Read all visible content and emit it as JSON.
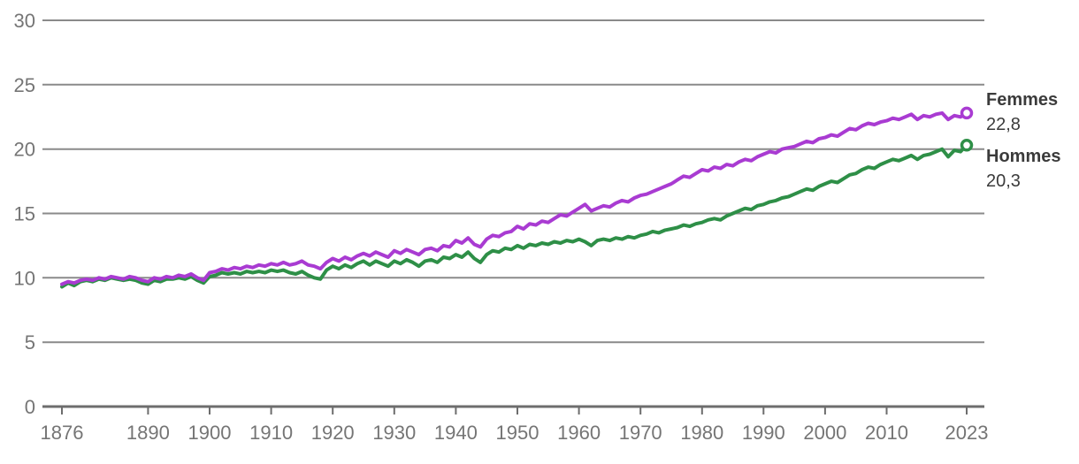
{
  "chart_data": {
    "type": "line",
    "title": "",
    "xlabel": "",
    "ylabel": "",
    "x_years": {
      "start": 1876,
      "end": 2023,
      "step": 1
    },
    "xlim": [
      1876,
      2023
    ],
    "ylim": [
      0,
      30
    ],
    "y_ticks": [
      0,
      5,
      10,
      15,
      20,
      25,
      30
    ],
    "x_tick_labels": [
      1876,
      1890,
      1900,
      1910,
      1920,
      1930,
      1940,
      1950,
      1960,
      1970,
      1980,
      1990,
      2000,
      2010,
      2023
    ],
    "grid": "horizontal",
    "legend_position": "end-of-line-labels-right",
    "style": {
      "grid_color": "#8a8a8a",
      "axis_color": "#6d6d6d",
      "tick_label_color": "#757575",
      "end_label_color": "#3b3b3b",
      "marker_fill": "#ffffff"
    },
    "series": [
      {
        "name": "Femmes",
        "color": "#a93bd2",
        "final_label": "22,8",
        "final_value": 22.8,
        "values": [
          9.5,
          9.7,
          9.6,
          9.8,
          9.9,
          9.8,
          10.0,
          9.9,
          10.1,
          10.0,
          9.9,
          10.1,
          10.0,
          9.8,
          9.7,
          10.0,
          9.9,
          10.1,
          10.0,
          10.2,
          10.1,
          10.3,
          10.0,
          9.8,
          10.4,
          10.5,
          10.7,
          10.6,
          10.8,
          10.7,
          10.9,
          10.8,
          11.0,
          10.9,
          11.1,
          11.0,
          11.2,
          11.0,
          11.1,
          11.3,
          11.0,
          10.9,
          10.7,
          11.2,
          11.5,
          11.3,
          11.6,
          11.4,
          11.7,
          11.9,
          11.7,
          12.0,
          11.8,
          11.6,
          12.1,
          11.9,
          12.2,
          12.0,
          11.8,
          12.2,
          12.3,
          12.1,
          12.5,
          12.4,
          12.9,
          12.7,
          13.1,
          12.6,
          12.4,
          13.0,
          13.3,
          13.2,
          13.5,
          13.6,
          14.0,
          13.8,
          14.2,
          14.1,
          14.4,
          14.3,
          14.6,
          14.9,
          14.8,
          15.1,
          15.4,
          15.7,
          15.2,
          15.4,
          15.6,
          15.5,
          15.8,
          16.0,
          15.9,
          16.2,
          16.4,
          16.5,
          16.7,
          16.9,
          17.1,
          17.3,
          17.6,
          17.9,
          17.8,
          18.1,
          18.4,
          18.3,
          18.6,
          18.5,
          18.8,
          18.7,
          19.0,
          19.2,
          19.1,
          19.4,
          19.6,
          19.8,
          19.7,
          20.0,
          20.1,
          20.2,
          20.4,
          20.6,
          20.5,
          20.8,
          20.9,
          21.1,
          21.0,
          21.3,
          21.6,
          21.5,
          21.8,
          22.0,
          21.9,
          22.1,
          22.2,
          22.4,
          22.3,
          22.5,
          22.7,
          22.3,
          22.6,
          22.5,
          22.7,
          22.8,
          22.3,
          22.6,
          22.5,
          22.8
        ]
      },
      {
        "name": "Hommes",
        "color": "#2e8f47",
        "final_label": "20,3",
        "final_value": 20.3,
        "values": [
          9.3,
          9.6,
          9.4,
          9.7,
          9.8,
          9.7,
          9.9,
          9.8,
          10.0,
          9.9,
          9.8,
          9.9,
          9.8,
          9.6,
          9.5,
          9.8,
          9.7,
          9.9,
          9.9,
          10.0,
          9.9,
          10.1,
          9.8,
          9.6,
          10.1,
          10.2,
          10.4,
          10.3,
          10.4,
          10.3,
          10.5,
          10.4,
          10.5,
          10.4,
          10.6,
          10.5,
          10.6,
          10.4,
          10.3,
          10.5,
          10.2,
          10.0,
          9.9,
          10.6,
          10.9,
          10.7,
          11.0,
          10.8,
          11.1,
          11.3,
          11.0,
          11.3,
          11.1,
          10.9,
          11.3,
          11.1,
          11.4,
          11.2,
          10.9,
          11.3,
          11.4,
          11.2,
          11.6,
          11.5,
          11.8,
          11.6,
          12.0,
          11.5,
          11.2,
          11.8,
          12.1,
          12.0,
          12.3,
          12.2,
          12.5,
          12.3,
          12.6,
          12.5,
          12.7,
          12.6,
          12.8,
          12.7,
          12.9,
          12.8,
          13.0,
          12.8,
          12.5,
          12.9,
          13.0,
          12.9,
          13.1,
          13.0,
          13.2,
          13.1,
          13.3,
          13.4,
          13.6,
          13.5,
          13.7,
          13.8,
          13.9,
          14.1,
          14.0,
          14.2,
          14.3,
          14.5,
          14.6,
          14.5,
          14.8,
          15.0,
          15.2,
          15.4,
          15.3,
          15.6,
          15.7,
          15.9,
          16.0,
          16.2,
          16.3,
          16.5,
          16.7,
          16.9,
          16.8,
          17.1,
          17.3,
          17.5,
          17.4,
          17.7,
          18.0,
          18.1,
          18.4,
          18.6,
          18.5,
          18.8,
          19.0,
          19.2,
          19.1,
          19.3,
          19.5,
          19.2,
          19.5,
          19.6,
          19.8,
          20.0,
          19.4,
          19.9,
          19.8,
          20.3
        ]
      }
    ]
  }
}
